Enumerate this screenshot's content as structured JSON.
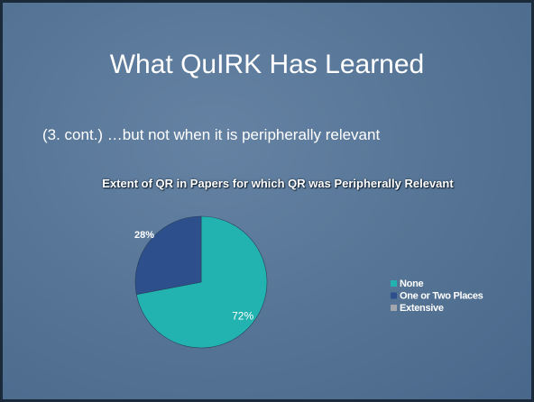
{
  "slide": {
    "title": "What QuIRK Has Learned",
    "text": "(3. cont.) …but not when it is peripherally relevant"
  },
  "chart_data": {
    "type": "pie",
    "title": "Extent of QR in Papers for which QR was Peripherally Relevant",
    "categories": [
      "None",
      "One or Two Places",
      "Extensive"
    ],
    "values": [
      72,
      28,
      0
    ],
    "value_labels": [
      "72%",
      "28%",
      null
    ],
    "colors": [
      "#22b3b1",
      "#2d4f8c",
      "#a3a7ad"
    ],
    "legend": "right"
  }
}
